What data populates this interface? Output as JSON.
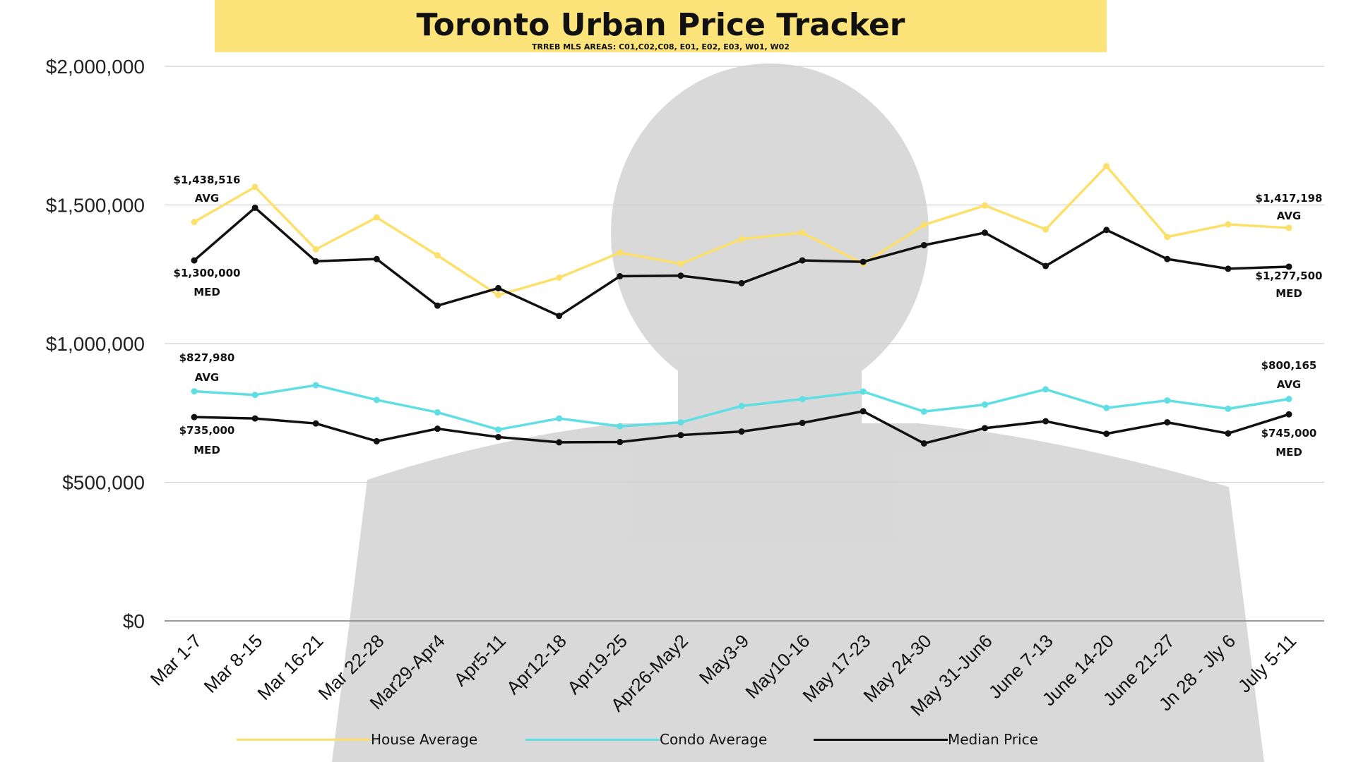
{
  "title": "Toronto Urban Price Tracker",
  "subtitle": "TRREB MLS AREAS: C01,C02,C08, E01, E02, E03, W01, W02",
  "colors": {
    "house": "#fde06a",
    "condo": "#5fdfe4",
    "median": "#111111",
    "grid": "#d0d0d0",
    "banner": "#fde47a"
  },
  "chart_data": {
    "type": "line",
    "categories": [
      "Mar 1-7",
      "Mar 8-15",
      "Mar 16-21",
      "Mar 22-28",
      "Mar29-Apr4",
      "Apr5-11",
      "Apr12-18",
      "Apr19-25",
      "Apr26-May2",
      "May3-9",
      "May10-16",
      "May 17-23",
      "May 24-30",
      "May 31-Jun6",
      "June 7-13",
      "June 14-20",
      "June 21-27",
      "Jn 28 - Jly 6",
      "July 5-11"
    ],
    "ylim": [
      0,
      2000000
    ],
    "yticks": [
      0,
      500000,
      1000000,
      1500000,
      2000000
    ],
    "ytick_labels": [
      "$0",
      "$500,000",
      "$1,000,000",
      "$1,500,000",
      "$2,000,000"
    ],
    "grid": true,
    "legend_position": "bottom",
    "series": [
      {
        "name": "House Average",
        "key": "house",
        "values": [
          1438516,
          1565000,
          1340000,
          1455000,
          1318000,
          1175000,
          1238000,
          1328000,
          1288000,
          1377000,
          1400000,
          1288000,
          1428000,
          1498000,
          1412000,
          1640000,
          1385000,
          1430000,
          1417198
        ]
      },
      {
        "name": "Condo Average",
        "key": "condo",
        "values": [
          827980,
          815000,
          850000,
          797000,
          752000,
          690000,
          730000,
          702000,
          716000,
          775000,
          800000,
          827000,
          755000,
          780000,
          835000,
          768000,
          795000,
          765000,
          800165
        ]
      },
      {
        "name": "Median Price",
        "key": "median",
        "values": [
          1300000,
          1490000,
          1297000,
          1305000,
          1137000,
          1200000,
          1100000,
          1243000,
          1245000,
          1218000,
          1300000,
          1295000,
          1355000,
          1400000,
          1280000,
          1410000,
          1305000,
          1270000,
          1277500
        ]
      },
      {
        "name": "Median Price",
        "key": "median",
        "values": [
          735000,
          730000,
          712000,
          648000,
          693000,
          663000,
          644000,
          645000,
          670000,
          683000,
          714000,
          756000,
          640000,
          695000,
          720000,
          675000,
          716000,
          676000,
          745000
        ]
      }
    ],
    "annotations": [
      {
        "key": "house_start_val",
        "text": "$1,438,516"
      },
      {
        "key": "house_start_lbl",
        "text": "AVG"
      },
      {
        "key": "house_end_val",
        "text": "$1,417,198"
      },
      {
        "key": "house_end_lbl",
        "text": "AVG"
      },
      {
        "key": "hmed_start_val",
        "text": "$1,300,000"
      },
      {
        "key": "hmed_start_lbl",
        "text": "MED"
      },
      {
        "key": "hmed_end_val",
        "text": "$1,277,500"
      },
      {
        "key": "hmed_end_lbl",
        "text": "MED"
      },
      {
        "key": "condo_start_val",
        "text": "$827,980"
      },
      {
        "key": "condo_start_lbl",
        "text": "AVG"
      },
      {
        "key": "condo_end_val",
        "text": "$800,165"
      },
      {
        "key": "condo_end_lbl",
        "text": "AVG"
      },
      {
        "key": "cmed_start_val",
        "text": "$735,000"
      },
      {
        "key": "cmed_start_lbl",
        "text": "MED"
      },
      {
        "key": "cmed_end_val",
        "text": "$745,000"
      },
      {
        "key": "cmed_end_lbl",
        "text": "MED"
      }
    ]
  },
  "legend": [
    {
      "name": "House Average",
      "key": "house"
    },
    {
      "name": "Condo Average",
      "key": "condo"
    },
    {
      "name": "Median Price",
      "key": "median"
    }
  ]
}
